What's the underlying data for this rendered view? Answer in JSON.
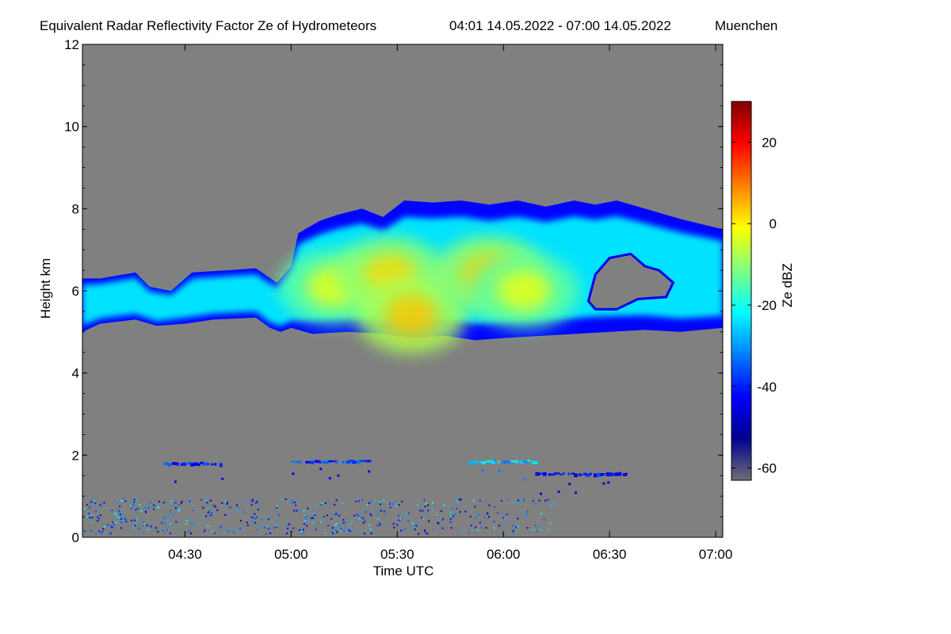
{
  "chart_data": {
    "type": "heatmap",
    "title": "Equivalent Radar Reflectivity Factor Ze of Hydrometeors",
    "time_range": "04:01 14.05.2022 - 07:00 14.05.2022",
    "location": "Muenchen",
    "xlabel": "Time UTC",
    "ylabel": "Height km",
    "colorbar_label": "Ze dBZ",
    "x_range": [
      "04:01",
      "07:02"
    ],
    "xlim_minutes_utc": [
      241,
      422
    ],
    "x_ticks": [
      {
        "label": "04:30",
        "minutes": 270
      },
      {
        "label": "05:00",
        "minutes": 300
      },
      {
        "label": "05:30",
        "minutes": 330
      },
      {
        "label": "06:00",
        "minutes": 360
      },
      {
        "label": "06:30",
        "minutes": 390
      },
      {
        "label": "07:00",
        "minutes": 420
      }
    ],
    "ylim": [
      0,
      12
    ],
    "y_ticks": [
      {
        "label": "0",
        "value": 0
      },
      {
        "label": "2",
        "value": 2
      },
      {
        "label": "4",
        "value": 4
      },
      {
        "label": "6",
        "value": 6
      },
      {
        "label": "8",
        "value": 8
      },
      {
        "label": "10",
        "value": 10
      },
      {
        "label": "12",
        "value": 12
      }
    ],
    "colorbar_range": [
      -63,
      30
    ],
    "colorbar_ticks": [
      {
        "label": "20",
        "value": 20
      },
      {
        "label": "0",
        "value": 0
      },
      {
        "label": "-20",
        "value": -20
      },
      {
        "label": "-40",
        "value": -40
      },
      {
        "label": "-60",
        "value": -60
      }
    ],
    "colormap": [
      "#6e6e78",
      "#00008f",
      "#0000ff",
      "#0080ff",
      "#00ffff",
      "#80ff80",
      "#ffff00",
      "#ff8000",
      "#ff0000",
      "#800000"
    ],
    "background_color": "#808080",
    "cloud_layers": [
      {
        "name": "upper cloud",
        "top": [
          [
            241,
            6.3
          ],
          [
            246,
            6.3
          ],
          [
            256,
            6.45
          ],
          [
            260,
            6.1
          ],
          [
            266,
            6.0
          ],
          [
            272,
            6.45
          ],
          [
            282,
            6.5
          ],
          [
            290,
            6.55
          ],
          [
            296,
            6.2
          ],
          [
            300,
            6.6
          ],
          [
            302,
            7.4
          ],
          [
            308,
            7.7
          ],
          [
            313,
            7.85
          ],
          [
            320,
            8.0
          ],
          [
            326,
            7.8
          ],
          [
            332,
            8.2
          ],
          [
            340,
            8.15
          ],
          [
            348,
            8.2
          ],
          [
            356,
            8.1
          ],
          [
            364,
            8.2
          ],
          [
            372,
            8.05
          ],
          [
            380,
            8.2
          ],
          [
            386,
            8.1
          ],
          [
            392,
            8.2
          ],
          [
            400,
            8.0
          ],
          [
            410,
            7.75
          ],
          [
            422,
            7.5
          ]
        ],
        "bottom": [
          [
            241,
            5.0
          ],
          [
            246,
            5.2
          ],
          [
            256,
            5.3
          ],
          [
            262,
            5.15
          ],
          [
            270,
            5.2
          ],
          [
            278,
            5.3
          ],
          [
            290,
            5.35
          ],
          [
            294,
            5.1
          ],
          [
            297,
            5.0
          ],
          [
            300,
            5.1
          ],
          [
            306,
            4.95
          ],
          [
            316,
            5.0
          ],
          [
            326,
            4.95
          ],
          [
            334,
            4.85
          ],
          [
            344,
            4.9
          ],
          [
            352,
            4.8
          ],
          [
            360,
            4.85
          ],
          [
            370,
            4.9
          ],
          [
            380,
            4.95
          ],
          [
            390,
            5.0
          ],
          [
            400,
            5.05
          ],
          [
            410,
            5.0
          ],
          [
            422,
            5.1
          ]
        ]
      }
    ],
    "cloud_gaps": [
      {
        "name": "clear gap",
        "points": [
          [
            384,
            5.75
          ],
          [
            386,
            6.4
          ],
          [
            390,
            6.8
          ],
          [
            396,
            6.9
          ],
          [
            400,
            6.6
          ],
          [
            404,
            6.5
          ],
          [
            408,
            6.2
          ],
          [
            406,
            5.85
          ],
          [
            398,
            5.8
          ],
          [
            392,
            5.55
          ],
          [
            386,
            5.55
          ]
        ]
      }
    ],
    "core_regions_dbz_max": [
      {
        "name": "yellow core west",
        "center": [
          312,
          6.1
        ],
        "dbz": -2
      },
      {
        "name": "core central",
        "center": [
          328,
          6.4
        ],
        "dbz": 2
      },
      {
        "name": "core deep",
        "center": [
          334,
          5.4
        ],
        "dbz": 4
      },
      {
        "name": "core east",
        "center": [
          356,
          6.4
        ],
        "dbz": 3
      },
      {
        "name": "core far east",
        "center": [
          366,
          6.0
        ],
        "dbz": -2
      }
    ],
    "low_echo_bands": [
      {
        "t_start": 264,
        "t_end": 281,
        "height": 1.8,
        "dbz": -40
      },
      {
        "t_start": 300,
        "t_end": 322,
        "height": 1.85,
        "dbz": -38
      },
      {
        "t_start": 350,
        "t_end": 368,
        "height": 1.85,
        "dbz": -28
      },
      {
        "t_start": 369,
        "t_end": 395,
        "height": 1.55,
        "dbz": -42
      }
    ],
    "surface_clutter": {
      "t_start": 241,
      "t_end": 374,
      "h_min": 0.1,
      "h_max": 0.95,
      "dbz": -35
    }
  }
}
